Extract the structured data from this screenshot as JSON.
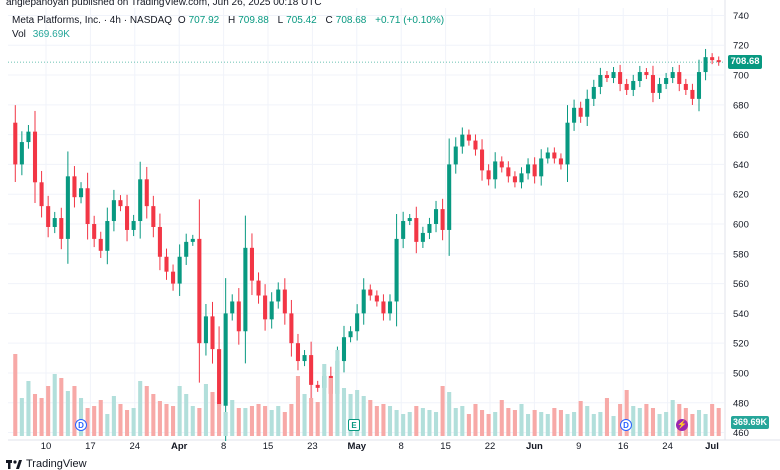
{
  "header": {
    "published_line": "angiepanoyan published on TradingView.com, Jun 26, 2025 00:18 UTC"
  },
  "legend": {
    "symbol": "Meta Platforms, Inc. · 4h · NASDAQ",
    "open_label": "O",
    "open": "707.92",
    "high_label": "H",
    "high": "709.88",
    "low_label": "L",
    "low": "705.42",
    "close_label": "C",
    "close": "708.68",
    "change": "+0.71 (+0.10%)",
    "vol_label": "Vol",
    "vol_value": "369.69K"
  },
  "price_tag": "708.68",
  "volume_tag": "369.69K",
  "footer": {
    "brand": "TradingView"
  },
  "markers": {
    "dividend": "D",
    "earnings": "E",
    "split": "⚡"
  },
  "colors": {
    "up": "#089981",
    "down": "#f23645",
    "vol_up": "#b2dfdb",
    "vol_down": "#f7a9a7",
    "grid": "#f0f3fa"
  },
  "chart_data": {
    "type": "candlestick",
    "symbol": "META",
    "interval": "4h",
    "y_ticks": [
      460,
      480,
      500,
      520,
      540,
      560,
      580,
      600,
      620,
      640,
      660,
      680,
      700,
      720,
      740
    ],
    "ylim": [
      455,
      745
    ],
    "x_ticks": [
      "10",
      "17",
      "24",
      "Apr",
      "8",
      "15",
      "23",
      "May",
      "8",
      "15",
      "22",
      "Jun",
      "9",
      "16",
      "24",
      "Jul"
    ],
    "current_price": 708.68,
    "ohlc_path": [
      668,
      640,
      655,
      662,
      628,
      612,
      598,
      604,
      590,
      632,
      618,
      624,
      600,
      590,
      582,
      602,
      616,
      612,
      596,
      602,
      630,
      612,
      598,
      578,
      568,
      560,
      578,
      588,
      590,
      520,
      538,
      516,
      478,
      540,
      548,
      528,
      584,
      562,
      552,
      536,
      548,
      556,
      540,
      520,
      508,
      512,
      492,
      490,
      498,
      486,
      508,
      524,
      528,
      540,
      556,
      552,
      548,
      540,
      548,
      590,
      602,
      604,
      588,
      594,
      600,
      610,
      596,
      640,
      652,
      660,
      656,
      650,
      636,
      630,
      642,
      638,
      632,
      628,
      634,
      640,
      632,
      644,
      648,
      644,
      640,
      668,
      678,
      672,
      684,
      692,
      700,
      698,
      702,
      694,
      690,
      696,
      702,
      700,
      688,
      694,
      698,
      702,
      694,
      690,
      684,
      702,
      712,
      710,
      708.68
    ],
    "volume": [
      0.82,
      0.38,
      0.55,
      0.42,
      0.38,
      0.5,
      0.62,
      0.58,
      0.45,
      0.5,
      0.38,
      0.28,
      0.3,
      0.36,
      0.22,
      0.4,
      0.32,
      0.26,
      0.28,
      0.55,
      0.5,
      0.42,
      0.35,
      0.32,
      0.3,
      0.5,
      0.42,
      0.3,
      0.28,
      0.52,
      0.44,
      0.32,
      0.24,
      0.36,
      0.28,
      0.28,
      0.3,
      0.32,
      0.3,
      0.26,
      0.3,
      0.24,
      0.32,
      0.6,
      0.42,
      0.38,
      0.34,
      0.72,
      0.58,
      0.86,
      0.48,
      0.42,
      0.46,
      0.4,
      0.36,
      0.3,
      0.32,
      0.3,
      0.26,
      0.22,
      0.24,
      0.3,
      0.28,
      0.26,
      0.24,
      0.5,
      0.44,
      0.28,
      0.3,
      0.22,
      0.32,
      0.26,
      0.22,
      0.24,
      0.36,
      0.28,
      0.26,
      0.32,
      0.22,
      0.26,
      0.24,
      0.22,
      0.28,
      0.26,
      0.22,
      0.24,
      0.35,
      0.3,
      0.22,
      0.24,
      0.38,
      0.2,
      0.32,
      0.46,
      0.3,
      0.28,
      0.32,
      0.28,
      0.22,
      0.24,
      0.36,
      0.32,
      0.28,
      0.22,
      0.26,
      0.22,
      0.32,
      0.28,
      0.2
    ]
  }
}
